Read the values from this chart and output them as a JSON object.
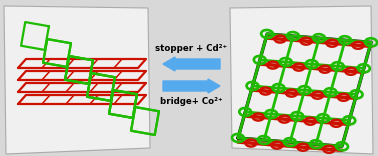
{
  "bg_color": "#d8d8d8",
  "panel_bg": "#f2f2f2",
  "panel_edge": "#aaaaaa",
  "green_color": "#1ebb00",
  "red_color": "#cc1100",
  "dark_color": "#111111",
  "arrow_color": "#55aaee",
  "arrow_up_text": "stopper + Cd²⁺",
  "arrow_down_text": "bridge+ Co²⁺",
  "lw": 1.6
}
